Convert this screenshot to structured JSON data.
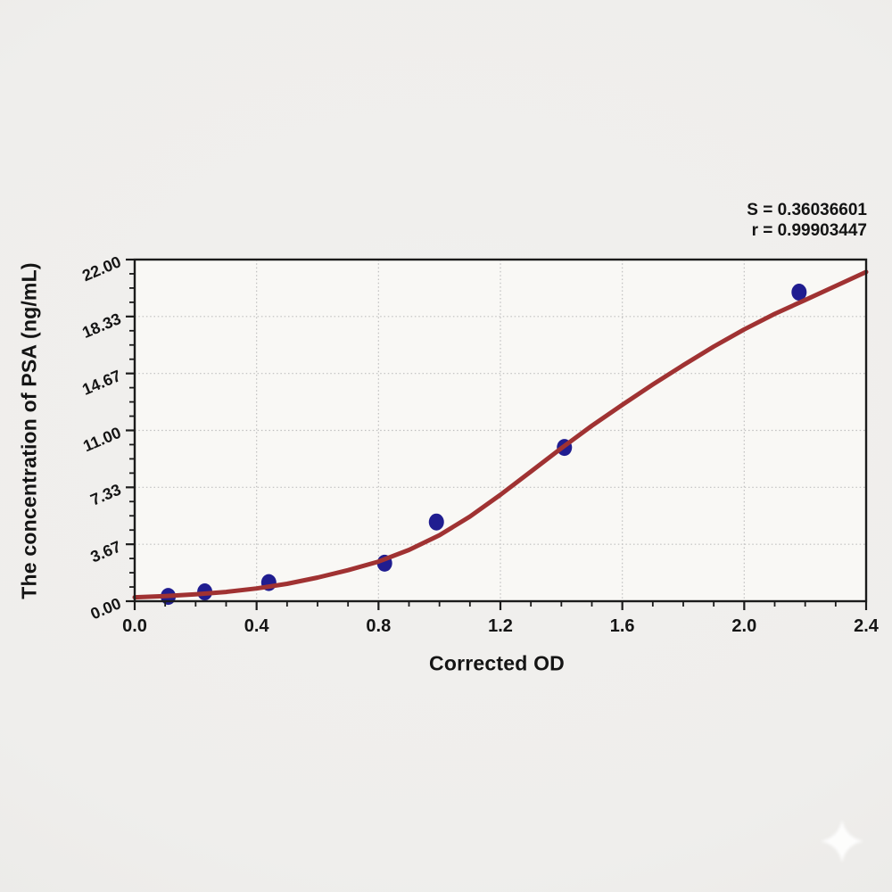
{
  "chart_data": {
    "type": "scatter",
    "title": "",
    "xlabel": "Corrected OD",
    "ylabel": "The concentration of PSA (ng/mL)",
    "xlim": [
      0.0,
      2.4
    ],
    "ylim": [
      0.0,
      22.0
    ],
    "x_ticks": {
      "values": [
        0.0,
        0.4,
        0.8,
        1.2,
        1.6,
        2.0,
        2.4
      ],
      "labels": [
        "0.0",
        "0.4",
        "0.8",
        "1.2",
        "1.6",
        "2.0",
        "2.4"
      ],
      "minor_per_interval": 3
    },
    "y_ticks": {
      "values": [
        0.0,
        3.6667,
        7.3333,
        11.0,
        14.6667,
        18.3333,
        22.0
      ],
      "labels": [
        "0.00",
        "3.67",
        "7.33",
        "11.00",
        "14.67",
        "18.33",
        "22.00"
      ],
      "minor_per_interval": 3
    },
    "grid": {
      "style": "dotted",
      "horizontal_at": [
        3.6667,
        7.3333,
        11.0,
        14.6667,
        18.3333
      ],
      "vertical_at": [
        0.4,
        0.8,
        1.2,
        1.6,
        2.0
      ]
    },
    "series": [
      {
        "name": "standard-points",
        "type": "scatter",
        "marker": "ellipse",
        "points": [
          [
            0.11,
            0.31
          ],
          [
            0.23,
            0.6
          ],
          [
            0.44,
            1.2
          ],
          [
            0.82,
            2.45
          ],
          [
            0.99,
            5.1
          ],
          [
            1.41,
            9.9
          ],
          [
            2.18,
            19.9
          ]
        ]
      },
      {
        "name": "fit-curve",
        "type": "line",
        "points": [
          [
            0.0,
            0.25
          ],
          [
            0.1,
            0.33
          ],
          [
            0.2,
            0.44
          ],
          [
            0.3,
            0.6
          ],
          [
            0.4,
            0.82
          ],
          [
            0.5,
            1.12
          ],
          [
            0.6,
            1.52
          ],
          [
            0.7,
            2.0
          ],
          [
            0.8,
            2.55
          ],
          [
            0.9,
            3.3
          ],
          [
            1.0,
            4.25
          ],
          [
            1.1,
            5.45
          ],
          [
            1.2,
            6.85
          ],
          [
            1.3,
            8.35
          ],
          [
            1.4,
            9.85
          ],
          [
            1.5,
            11.3
          ],
          [
            1.6,
            12.65
          ],
          [
            1.7,
            13.95
          ],
          [
            1.8,
            15.2
          ],
          [
            1.9,
            16.4
          ],
          [
            2.0,
            17.5
          ],
          [
            2.1,
            18.5
          ],
          [
            2.2,
            19.4
          ],
          [
            2.3,
            20.3
          ],
          [
            2.4,
            21.2
          ]
        ]
      }
    ],
    "stats": {
      "s_label": "S = 0.36036601",
      "r_label": "r = 0.99903447",
      "S": 0.36036601,
      "r": 0.99903447
    },
    "legend": null,
    "colors": {
      "curve": "#a03232",
      "points": "#201d90",
      "axis": "#1b1b1b",
      "grid": "#bfbfbf",
      "text": "#151515",
      "plot_bg": "#f9f8f5",
      "page_bg": "#efeeec",
      "watermark": "#ffffff"
    }
  }
}
